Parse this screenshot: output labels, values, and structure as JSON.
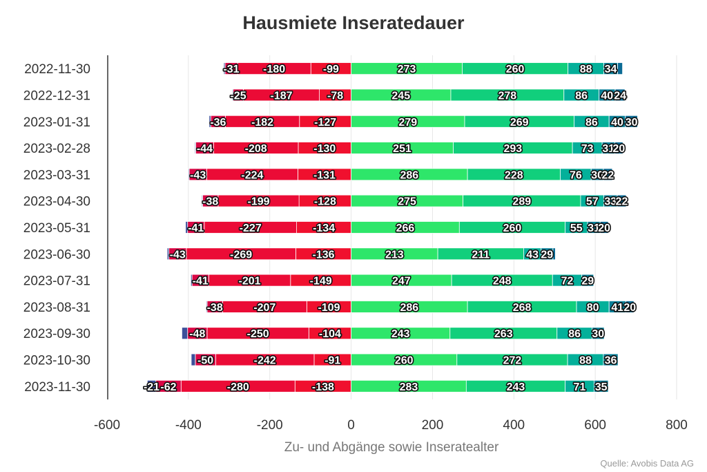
{
  "chart_data": {
    "type": "bar",
    "orientation": "horizontal",
    "stacked": true,
    "title": "Hausmiete Inseratedauer",
    "xlabel": "Zu- und Abgänge sowie Inseratealter",
    "ylabel": "",
    "source": "Quelle: Avobis Data AG",
    "xlim": [
      -600,
      800
    ],
    "xticks": [
      -600,
      -400,
      -200,
      0,
      200,
      400,
      600,
      800
    ],
    "grid": "vertical",
    "categories": [
      "2022-11-30",
      "2022-12-31",
      "2023-01-31",
      "2023-02-28",
      "2023-03-31",
      "2023-04-30",
      "2023-05-31",
      "2023-06-30",
      "2023-07-31",
      "2023-08-31",
      "2023-09-30",
      "2023-10-30",
      "2023-11-30"
    ],
    "series": [
      {
        "side": "neg",
        "color": "#f0102e",
        "values": [
          -99,
          -78,
          -127,
          -130,
          -131,
          -128,
          -134,
          -136,
          -149,
          -109,
          -104,
          -91,
          -138
        ]
      },
      {
        "side": "neg",
        "color": "#eb0b36",
        "values": [
          -180,
          -187,
          -182,
          -208,
          -224,
          -199,
          -227,
          -269,
          -201,
          -207,
          -250,
          -242,
          -280
        ]
      },
      {
        "side": "neg",
        "color": "#d90745",
        "values": [
          -31,
          -25,
          -36,
          -44,
          -43,
          -38,
          -41,
          -43,
          -41,
          -38,
          -48,
          -50,
          -62
        ]
      },
      {
        "side": "neg",
        "color": "#3d4f9a",
        "values": [
          -3,
          -2,
          -4,
          -2,
          -2,
          -2,
          -5,
          -4,
          -3,
          -2,
          -14,
          -10,
          -21
        ]
      },
      {
        "side": "pos",
        "color": "#2ee66a",
        "values": [
          273,
          245,
          279,
          251,
          286,
          275,
          266,
          213,
          247,
          286,
          243,
          260,
          283
        ]
      },
      {
        "side": "pos",
        "color": "#11cf7c",
        "values": [
          260,
          278,
          269,
          293,
          228,
          289,
          260,
          211,
          248,
          268,
          263,
          272,
          243
        ]
      },
      {
        "side": "pos",
        "color": "#04b09a",
        "values": [
          88,
          86,
          86,
          73,
          76,
          57,
          55,
          43,
          72,
          80,
          86,
          88,
          71
        ]
      },
      {
        "side": "pos",
        "color": "#0a7f98",
        "values": [
          34,
          40,
          40,
          31,
          30,
          33,
          31,
          29,
          29,
          41,
          30,
          36,
          35
        ]
      },
      {
        "side": "pos",
        "color": "#0b6b95",
        "values": [
          12,
          24,
          30,
          20,
          22,
          22,
          20,
          6,
          0,
          20,
          0,
          0,
          0
        ]
      }
    ]
  }
}
